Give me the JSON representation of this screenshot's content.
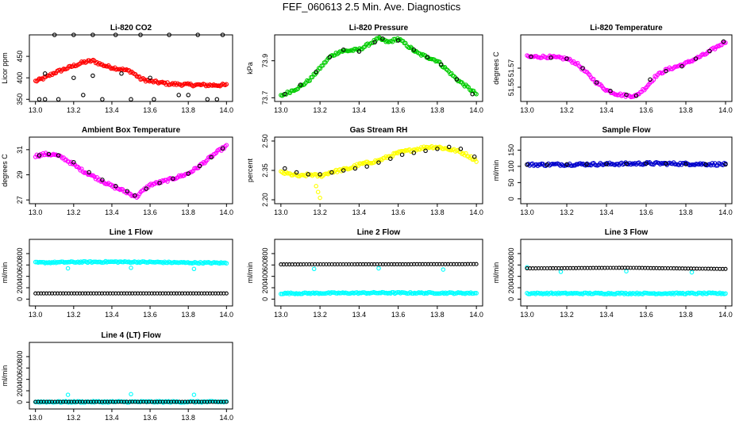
{
  "figure": {
    "title": "FEF_060613  2.5 Min. Ave. Diagnostics"
  },
  "chart_data": [
    {
      "type": "scatter",
      "title": "Li-820 CO2",
      "ylabel": "Licor ppm",
      "xlim": [
        13.0,
        14.0
      ],
      "ylim": [
        345,
        500
      ],
      "yticks": [
        350,
        400,
        450
      ],
      "xticks": [
        "13.0",
        "13.2",
        "13.4",
        "13.6",
        "13.8",
        "14.0"
      ],
      "series": [
        {
          "color": "#ff0000",
          "style": "dense-circles",
          "x": [
            13.0,
            13.05,
            13.1,
            13.15,
            13.2,
            13.25,
            13.3,
            13.35,
            13.4,
            13.45,
            13.5,
            13.55,
            13.6,
            13.7,
            13.8,
            13.9,
            14.0
          ],
          "y": [
            392,
            400,
            412,
            420,
            428,
            436,
            440,
            430,
            424,
            420,
            415,
            398,
            392,
            386,
            384,
            383,
            383
          ]
        },
        {
          "color": "#000000",
          "style": "sparse-circles",
          "x": [
            13.02,
            13.05,
            13.1,
            13.12,
            13.2,
            13.25,
            13.3,
            13.35,
            13.42,
            13.5,
            13.55,
            13.62,
            13.7,
            13.75,
            13.85,
            13.9,
            13.98,
            13.05,
            13.2,
            13.3,
            13.45,
            13.6,
            13.8,
            13.95
          ],
          "y": [
            350,
            350,
            500,
            350,
            500,
            360,
            500,
            350,
            500,
            350,
            500,
            350,
            500,
            360,
            500,
            350,
            500,
            410,
            400,
            405,
            410,
            400,
            360,
            350
          ]
        }
      ]
    },
    {
      "type": "scatter",
      "title": "Li-820 Pressure",
      "ylabel": "kPa",
      "xlim": [
        13.0,
        14.0
      ],
      "ylim": [
        73.68,
        74.04
      ],
      "yticks": [
        73.7,
        73.9
      ],
      "ytick_labels": [
        "73.7",
        "73.9"
      ],
      "xticks": [
        "13.0",
        "13.2",
        "13.4",
        "13.6",
        "13.8",
        "14.0"
      ],
      "series": [
        {
          "color": "#00cc00",
          "style": "dense-circles",
          "x": [
            13.0,
            13.1,
            13.15,
            13.2,
            13.25,
            13.3,
            13.4,
            13.45,
            13.5,
            13.55,
            13.6,
            13.65,
            13.7,
            13.8,
            13.85,
            13.9,
            14.0
          ],
          "y": [
            73.71,
            73.76,
            73.8,
            73.86,
            73.92,
            73.95,
            73.96,
            73.99,
            74.02,
            74.0,
            74.02,
            73.98,
            73.94,
            73.9,
            73.85,
            73.8,
            73.72
          ]
        },
        {
          "color": "#000000",
          "style": "sparse-circles",
          "x": [
            13.02,
            13.1,
            13.18,
            13.25,
            13.32,
            13.4,
            13.48,
            13.52,
            13.6,
            13.68,
            13.75,
            13.82,
            13.9,
            13.98
          ],
          "y": [
            73.72,
            73.77,
            73.84,
            73.92,
            73.96,
            73.95,
            74.0,
            74.02,
            74.01,
            73.96,
            73.92,
            73.88,
            73.8,
            73.72
          ]
        }
      ]
    },
    {
      "type": "scatter",
      "title": "Li-820 Temperature",
      "ylabel": "degrees C",
      "xlim": [
        13.0,
        14.0
      ],
      "ylim": [
        51.535,
        51.605
      ],
      "yticks": [
        51.55,
        51.57
      ],
      "ytick_labels": [
        "51.55",
        "51.57"
      ],
      "xticks": [
        "13.0",
        "13.2",
        "13.4",
        "13.6",
        "13.8",
        "14.0"
      ],
      "series": [
        {
          "color": "#ff00ff",
          "style": "dense-circles",
          "x": [
            13.0,
            13.1,
            13.2,
            13.25,
            13.3,
            13.35,
            13.4,
            13.45,
            13.5,
            13.55,
            13.6,
            13.65,
            13.7,
            13.8,
            13.9,
            14.0
          ],
          "y": [
            51.582,
            51.582,
            51.58,
            51.575,
            51.565,
            51.555,
            51.547,
            51.543,
            51.541,
            51.541,
            51.55,
            51.562,
            51.568,
            51.575,
            51.585,
            51.598
          ]
        },
        {
          "color": "#000000",
          "style": "sparse-circles",
          "x": [
            13.02,
            13.12,
            13.2,
            13.28,
            13.35,
            13.42,
            13.5,
            13.55,
            13.62,
            13.7,
            13.78,
            13.85,
            13.92,
            13.99
          ],
          "y": [
            51.582,
            51.581,
            51.58,
            51.57,
            51.555,
            51.546,
            51.542,
            51.541,
            51.558,
            51.567,
            51.572,
            51.58,
            51.588,
            51.598
          ]
        }
      ]
    },
    {
      "type": "scatter",
      "title": "Ambient Box Temperature",
      "ylabel": "degrees C",
      "xlim": [
        13.0,
        14.0
      ],
      "ylim": [
        26.7,
        32.0
      ],
      "yticks": [
        27,
        29,
        31
      ],
      "xticks": [
        "13.0",
        "13.2",
        "13.4",
        "13.6",
        "13.8",
        "14.0"
      ],
      "series": [
        {
          "color": "#ff00ff",
          "style": "dense-circles",
          "x": [
            13.0,
            13.05,
            13.1,
            13.15,
            13.2,
            13.25,
            13.3,
            13.35,
            13.4,
            13.45,
            13.5,
            13.53,
            13.56,
            13.6,
            13.7,
            13.8,
            13.85,
            13.9,
            13.95,
            14.0
          ],
          "y": [
            30.5,
            30.65,
            30.6,
            30.3,
            29.8,
            29.3,
            28.9,
            28.5,
            28.1,
            27.8,
            27.45,
            27.25,
            27.7,
            28.2,
            28.6,
            29.1,
            29.6,
            30.2,
            30.8,
            31.3
          ]
        },
        {
          "color": "#000000",
          "style": "sparse-circles",
          "x": [
            13.02,
            13.07,
            13.12,
            13.2,
            13.28,
            13.35,
            13.42,
            13.48,
            13.52,
            13.58,
            13.65,
            13.72,
            13.8,
            13.86,
            13.92,
            13.98
          ],
          "y": [
            30.55,
            30.65,
            30.55,
            30.0,
            29.2,
            28.6,
            28.1,
            27.7,
            27.35,
            27.9,
            28.35,
            28.7,
            29.1,
            29.7,
            30.4,
            31.1
          ]
        }
      ]
    },
    {
      "type": "scatter",
      "title": "Gas Stream RH",
      "ylabel": "percent",
      "xlim": [
        13.0,
        14.0
      ],
      "ylim": [
        2.18,
        2.52
      ],
      "yticks": [
        2.2,
        2.35,
        2.5
      ],
      "ytick_labels": [
        "2.20",
        "2.35",
        "2.50"
      ],
      "xticks": [
        "13.0",
        "13.2",
        "13.4",
        "13.6",
        "13.8",
        "14.0"
      ],
      "series": [
        {
          "color": "#ffff00",
          "style": "dense-circles",
          "x": [
            13.0,
            13.05,
            13.1,
            13.15,
            13.2,
            13.25,
            13.3,
            13.35,
            13.4,
            13.45,
            13.5,
            13.55,
            13.6,
            13.65,
            13.7,
            13.75,
            13.8,
            13.85,
            13.9,
            13.95,
            14.0
          ],
          "y": [
            2.34,
            2.33,
            2.32,
            2.33,
            2.32,
            2.34,
            2.35,
            2.36,
            2.38,
            2.39,
            2.4,
            2.42,
            2.44,
            2.45,
            2.46,
            2.47,
            2.47,
            2.46,
            2.45,
            2.43,
            2.4
          ]
        },
        {
          "color": "#ffff00",
          "style": "outliers",
          "x": [
            13.18,
            13.19,
            13.2
          ],
          "y": [
            2.27,
            2.24,
            2.21
          ]
        },
        {
          "color": "#000000",
          "style": "sparse-circles",
          "x": [
            13.02,
            13.08,
            13.14,
            13.2,
            13.26,
            13.32,
            13.38,
            13.44,
            13.5,
            13.56,
            13.62,
            13.68,
            13.74,
            13.8,
            13.86,
            13.92,
            13.99
          ],
          "y": [
            2.36,
            2.34,
            2.33,
            2.33,
            2.34,
            2.35,
            2.36,
            2.37,
            2.39,
            2.41,
            2.43,
            2.44,
            2.45,
            2.46,
            2.47,
            2.46,
            2.42
          ]
        }
      ]
    },
    {
      "type": "scatter",
      "title": "Sample Flow",
      "ylabel": "ml/min",
      "xlim": [
        13.0,
        14.0
      ],
      "ylim": [
        -15,
        190
      ],
      "yticks": [
        0,
        50,
        100,
        150
      ],
      "xticks": [
        "13.0",
        "13.2",
        "13.4",
        "13.6",
        "13.8",
        "14.0"
      ],
      "series": [
        {
          "color": "#0000cc",
          "style": "dense-circles",
          "x": [
            13.0,
            13.2,
            13.4,
            13.6,
            13.8,
            14.0
          ],
          "y": [
            105,
            106,
            107,
            109,
            108,
            106
          ]
        },
        {
          "color": "#000000",
          "style": "sparse-circles",
          "x": [
            13.0,
            13.1,
            13.2,
            13.3,
            13.4,
            13.5,
            13.6,
            13.7,
            13.8,
            13.9,
            14.0
          ],
          "y": [
            105,
            105,
            106,
            106,
            107,
            108,
            109,
            108,
            107,
            106,
            106
          ]
        }
      ]
    },
    {
      "type": "scatter",
      "title": "Line 1 Flow",
      "ylabel": "ml/min",
      "xlim": [
        13.0,
        14.0
      ],
      "ylim": [
        -120,
        1050
      ],
      "yticks": [
        0,
        200,
        400,
        600,
        800
      ],
      "xticks": [
        "13.0",
        "13.2",
        "13.4",
        "13.6",
        "13.8",
        "14.0"
      ],
      "series": [
        {
          "color": "#00ffff",
          "style": "band-circles",
          "x": [
            13.0,
            13.2,
            13.4,
            13.6,
            13.8,
            14.0
          ],
          "y": [
            640,
            650,
            655,
            650,
            640,
            635
          ]
        },
        {
          "color": "#00ffff",
          "style": "outliers",
          "x": [
            13.17,
            13.5,
            13.83
          ],
          "y": [
            540,
            550,
            530
          ]
        },
        {
          "color": "#000000",
          "style": "chain-circles",
          "x": [
            13.0,
            14.0
          ],
          "y": [
            100,
            100
          ]
        }
      ]
    },
    {
      "type": "scatter",
      "title": "Line 2 Flow",
      "ylabel": "ml/min",
      "xlim": [
        13.0,
        14.0
      ],
      "ylim": [
        -120,
        1050
      ],
      "yticks": [
        0,
        200,
        400,
        600,
        800
      ],
      "xticks": [
        "13.0",
        "13.2",
        "13.4",
        "13.6",
        "13.8",
        "14.0"
      ],
      "series": [
        {
          "color": "#00ffff",
          "style": "band-circles",
          "x": [
            13.0,
            13.5,
            14.0
          ],
          "y": [
            100,
            110,
            105
          ]
        },
        {
          "color": "#00ffff",
          "style": "outliers",
          "x": [
            13.17,
            13.5,
            13.83
          ],
          "y": [
            530,
            540,
            520
          ]
        },
        {
          "color": "#000000",
          "style": "chain-circles",
          "x": [
            13.0,
            14.0
          ],
          "y": [
            610,
            615
          ]
        }
      ]
    },
    {
      "type": "scatter",
      "title": "Line 3 Flow",
      "ylabel": "ml/min",
      "xlim": [
        13.0,
        14.0
      ],
      "ylim": [
        -120,
        1050
      ],
      "yticks": [
        0,
        200,
        400,
        600,
        800
      ],
      "xticks": [
        "13.0",
        "13.2",
        "13.4",
        "13.6",
        "13.8",
        "14.0"
      ],
      "series": [
        {
          "color": "#00ffff",
          "style": "band-circles",
          "x": [
            13.0,
            14.0
          ],
          "y": [
            100,
            100
          ]
        },
        {
          "color": "#00ffff",
          "style": "outliers",
          "x": [
            13.0,
            13.17,
            13.5,
            13.83
          ],
          "y": [
            560,
            480,
            490,
            470
          ]
        },
        {
          "color": "#000000",
          "style": "chain-circles",
          "x": [
            13.0,
            13.5,
            14.0
          ],
          "y": [
            540,
            550,
            530
          ]
        }
      ]
    },
    {
      "type": "scatter",
      "title": "Line 4 (LT) Flow",
      "ylabel": "ml/min",
      "xlim": [
        13.0,
        14.0
      ],
      "ylim": [
        -120,
        1050
      ],
      "yticks": [
        0,
        200,
        400,
        600,
        800
      ],
      "xticks": [
        "13.0",
        "13.2",
        "13.4",
        "13.6",
        "13.8",
        "14.0"
      ],
      "series": [
        {
          "color": "#00ffff",
          "style": "band-circles",
          "x": [
            13.0,
            14.0
          ],
          "y": [
            5,
            5
          ]
        },
        {
          "color": "#00ffff",
          "style": "outliers",
          "x": [
            13.17,
            13.5,
            13.83
          ],
          "y": [
            130,
            140,
            130
          ]
        },
        {
          "color": "#000000",
          "style": "chain-circles",
          "x": [
            13.0,
            14.0
          ],
          "y": [
            5,
            5
          ]
        }
      ]
    }
  ]
}
